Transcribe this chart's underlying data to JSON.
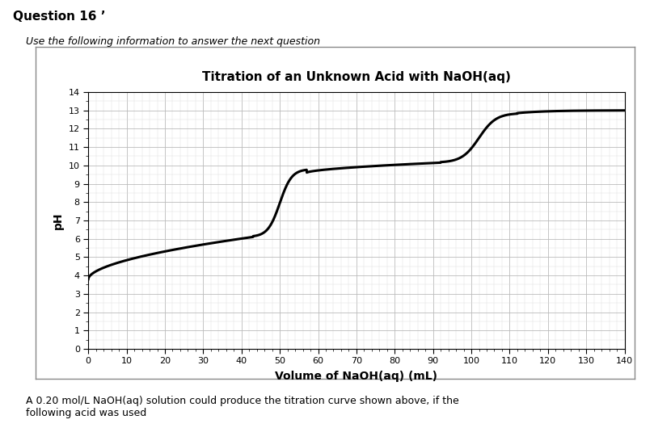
{
  "title": "Titration of an Unknown Acid with NaOH(aq)",
  "xlabel": "Volume of NaOH(aq) (mL)",
  "ylabel": "pH",
  "xlim": [
    0,
    140
  ],
  "ylim": [
    0,
    14
  ],
  "xticks": [
    0,
    10,
    20,
    30,
    40,
    50,
    60,
    70,
    80,
    90,
    100,
    110,
    120,
    130,
    140
  ],
  "yticks": [
    0,
    1,
    2,
    3,
    4,
    5,
    6,
    7,
    8,
    9,
    10,
    11,
    12,
    13,
    14
  ],
  "line_color": "#000000",
  "line_width": 2.2,
  "bg_color": "#ffffff",
  "grid_major_color": "#bbbbbb",
  "grid_minor_color": "#dddddd",
  "header_text": "Question 16 ’",
  "subheader_text": "Use the following information to answer the next question",
  "footer_text": "A 0.20 mol/L NaOH(aq) solution could produce the titration curve shown above, if the\nfollowing acid was used",
  "start_pH": 3.8,
  "end_pH": 13.0
}
